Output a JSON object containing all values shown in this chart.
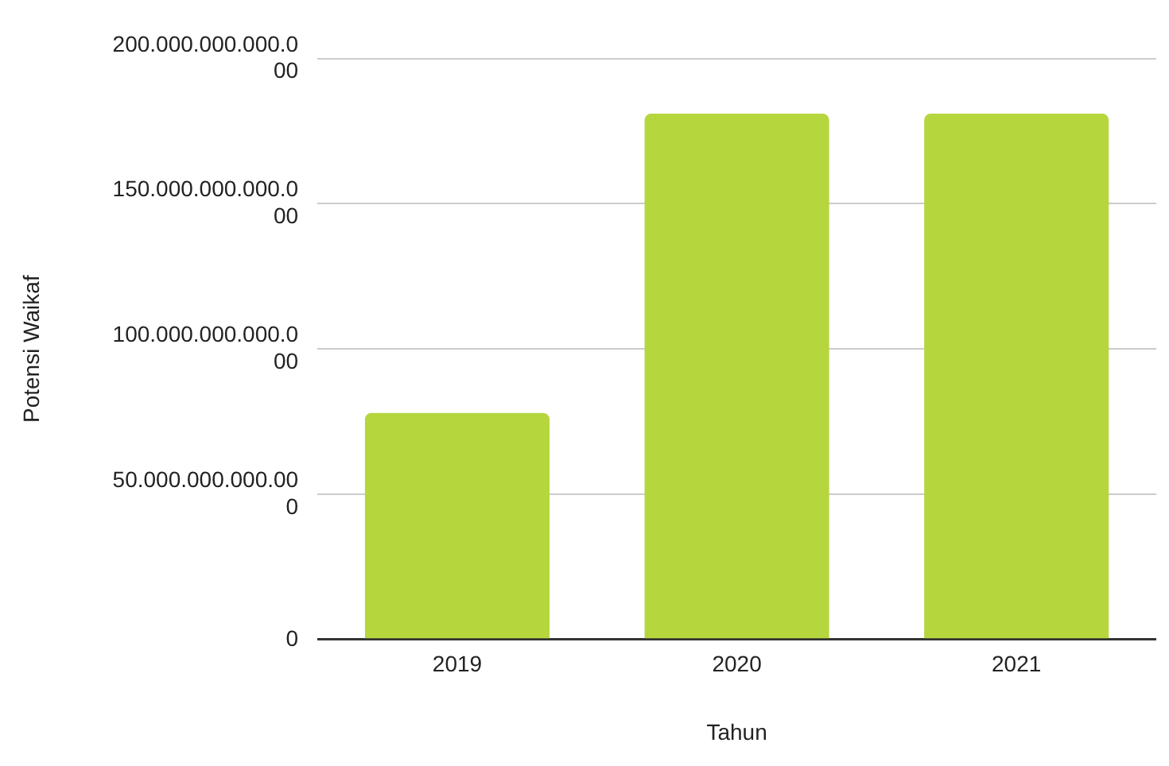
{
  "chart_data": {
    "type": "bar",
    "xlabel": "Tahun",
    "ylabel": "Potensi Waikaf",
    "categories": [
      "2019",
      "2020",
      "2021"
    ],
    "values": [
      78000000000000,
      181000000000000,
      181000000000000
    ],
    "color": "#b5d63d",
    "ylim": [
      0,
      200000000000000
    ],
    "yticks": [
      {
        "value": 0,
        "label": "0"
      },
      {
        "value": 50000000000000,
        "label": "50.000.000.000.000"
      },
      {
        "value": 100000000000000,
        "label": "100.000.000.000.000"
      },
      {
        "value": 150000000000000,
        "label": "150.000.000.000.000"
      },
      {
        "value": 200000000000000,
        "label": "200.000.000.000.000"
      }
    ],
    "grid": "y",
    "legend": false
  }
}
